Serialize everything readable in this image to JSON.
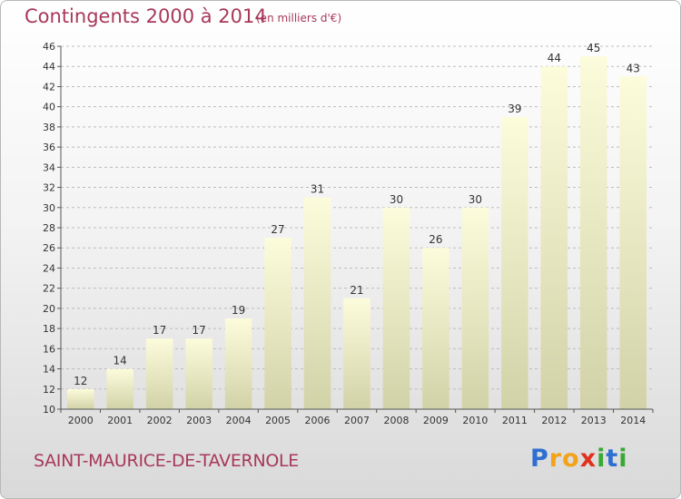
{
  "chart_data": {
    "type": "bar",
    "title": "Contingents 2000 à 2014",
    "unit_label": "(en milliers d'€)",
    "categories": [
      "2000",
      "2001",
      "2002",
      "2003",
      "2004",
      "2005",
      "2006",
      "2007",
      "2008",
      "2009",
      "2010",
      "2011",
      "2012",
      "2013",
      "2014"
    ],
    "values": [
      12,
      14,
      17,
      17,
      19,
      27,
      31,
      21,
      30,
      26,
      30,
      39,
      44,
      45,
      43
    ],
    "ylim": [
      10,
      46
    ],
    "yticks": [
      10,
      12,
      14,
      16,
      18,
      20,
      22,
      24,
      26,
      28,
      30,
      32,
      34,
      36,
      38,
      40,
      42,
      44,
      46
    ],
    "grid": "horizontal dashed",
    "xlabel": "",
    "ylabel": ""
  },
  "footer": {
    "town": "SAINT-MAURICE-DE-TAVERNOLE",
    "brand": "Proxiti",
    "brand_letters": [
      {
        "ch": "P",
        "color": "#2f6fd1"
      },
      {
        "ch": "r",
        "color": "#f3a21b"
      },
      {
        "ch": "o",
        "color": "#f3a21b"
      },
      {
        "ch": "x",
        "color": "#e0301e"
      },
      {
        "ch": "i",
        "color": "#3aa835"
      },
      {
        "ch": "t",
        "color": "#2f6fd1"
      },
      {
        "ch": "i",
        "color": "#3aa835"
      }
    ]
  },
  "colors": {
    "bar_top": "#fcfcdc",
    "bar_bottom": "#d2d2a8",
    "text_accent": "#a8385a"
  }
}
